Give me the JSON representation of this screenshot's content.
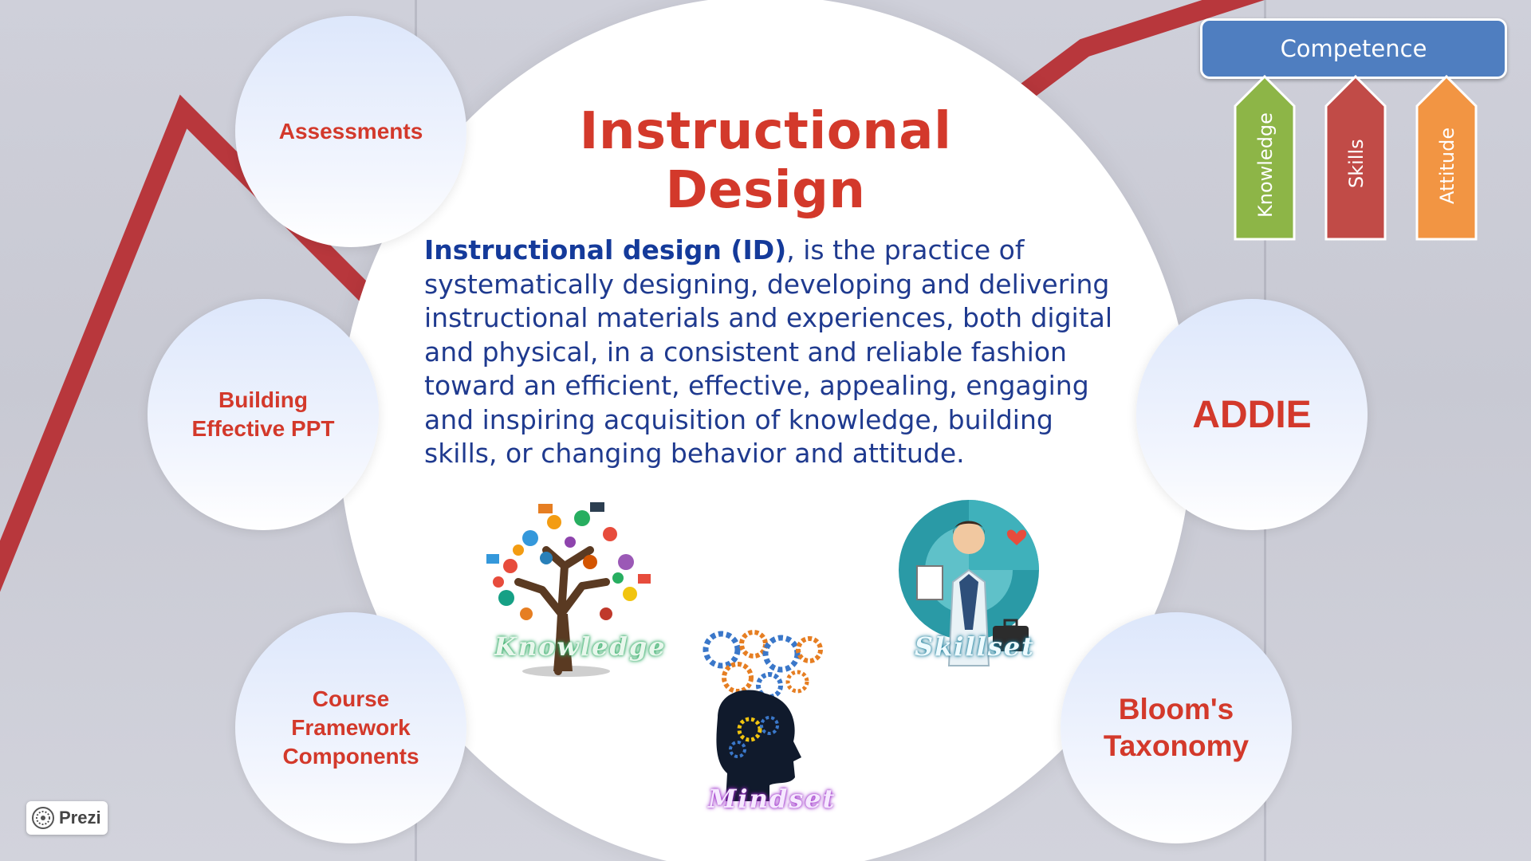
{
  "title": "Instructional Design",
  "description": {
    "term": "Instructional design (ID)",
    "text": ", is the practice of systematically designing, developing and delivering instructional materials and experiences, both digital and physical, in a consistent and reliable fashion toward an efficient, effective, appealing, engaging and inspiring acquisition of knowledge, building skills, or changing behavior and attitude."
  },
  "nodes": {
    "assessments": "Assessments",
    "building_ppt": [
      "Building",
      "Effective PPT"
    ],
    "course_framework": [
      "Course",
      "Framework",
      "Components"
    ],
    "addie": "ADDIE",
    "blooms": [
      "Bloom's",
      "Taxonomy"
    ]
  },
  "competence": {
    "header": "Competence",
    "pillars": [
      {
        "label": "Knowledge",
        "color": "#8db547"
      },
      {
        "label": "Skills",
        "color": "#c14b47"
      },
      {
        "label": "Attitude",
        "color": "#f29543"
      }
    ]
  },
  "illustrations": {
    "knowledge": "Knowledge",
    "mindset": "Mindset",
    "skillset": "Skillset"
  },
  "prezi_logo": "Prezi",
  "colors": {
    "accent_red": "#d3392b",
    "text_blue": "#1f3a8f",
    "competence_blue": "#4f7ec0"
  }
}
